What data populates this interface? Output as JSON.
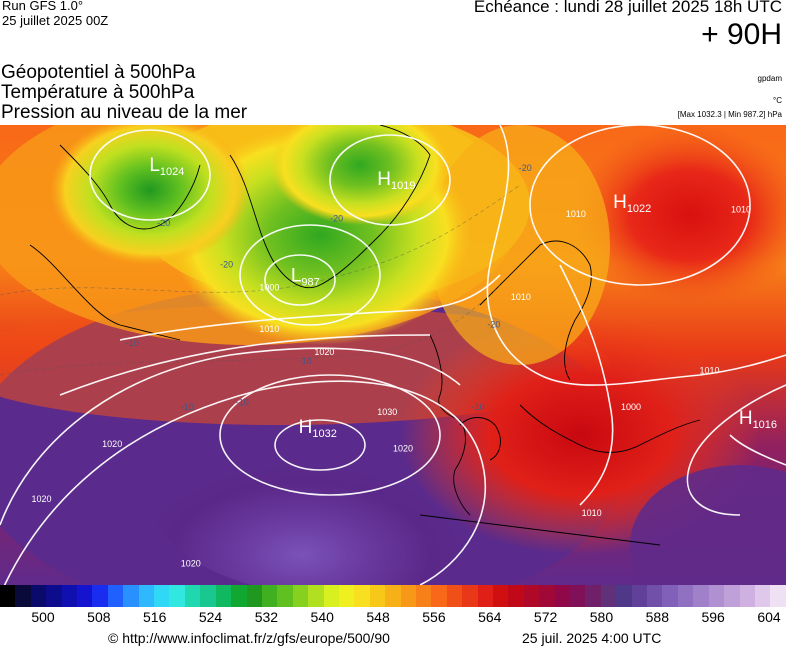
{
  "header": {
    "run_model": "Run GFS 1.0°",
    "run_date": "25 juillet 2025 00Z",
    "echeance": "Echéance : lundi 28 juillet 2025 18h UTC",
    "forecast_hour": "+ 90H"
  },
  "parameters": {
    "line1": "Géopotentiel à 500hPa",
    "line2": "Température à 500hPa",
    "line3": "Pression au niveau de la mer",
    "unit_geopotential": "gpdam",
    "unit_temperature": "°C",
    "max_min": "[Max 1032.3 | Min 987.2] hPa"
  },
  "pressure_centers": [
    {
      "type": "L",
      "value": "1024",
      "mx": 0.19,
      "my": 0.1
    },
    {
      "type": "H",
      "value": "1019",
      "mx": 0.48,
      "my": 0.13
    },
    {
      "type": "L",
      "value": "987",
      "mx": 0.37,
      "my": 0.34
    },
    {
      "type": "H",
      "value": "1022",
      "mx": 0.78,
      "my": 0.18
    },
    {
      "type": "H",
      "value": "1032",
      "mx": 0.38,
      "my": 0.67
    },
    {
      "type": "H",
      "value": "1016",
      "mx": 0.94,
      "my": 0.65
    }
  ],
  "isobar_labels": [
    {
      "text": "1010",
      "mx": 0.33,
      "my": 0.45
    },
    {
      "text": "1020",
      "mx": 0.4,
      "my": 0.5
    },
    {
      "text": "1030",
      "mx": 0.48,
      "my": 0.63
    },
    {
      "text": "1020",
      "mx": 0.5,
      "my": 0.71
    },
    {
      "text": "1020",
      "mx": 0.13,
      "my": 0.7
    },
    {
      "text": "1020",
      "mx": 0.04,
      "my": 0.82
    },
    {
      "text": "1020",
      "mx": 0.23,
      "my": 0.96
    },
    {
      "text": "1010",
      "mx": 0.72,
      "my": 0.2
    },
    {
      "text": "1010",
      "mx": 0.93,
      "my": 0.19
    },
    {
      "text": "1010",
      "mx": 0.89,
      "my": 0.54
    },
    {
      "text": "1010",
      "mx": 0.74,
      "my": 0.85
    },
    {
      "text": "1000",
      "mx": 0.79,
      "my": 0.62
    },
    {
      "text": "1000",
      "mx": 0.33,
      "my": 0.36
    },
    {
      "text": "1010",
      "mx": 0.65,
      "my": 0.38
    }
  ],
  "temperature_labels": [
    {
      "text": "-20",
      "mx": 0.2,
      "my": 0.22
    },
    {
      "text": "-20",
      "mx": 0.28,
      "my": 0.31
    },
    {
      "text": "-20",
      "mx": 0.42,
      "my": 0.21
    },
    {
      "text": "-20",
      "mx": 0.66,
      "my": 0.1
    },
    {
      "text": "-20",
      "mx": 0.62,
      "my": 0.44
    },
    {
      "text": "-10",
      "mx": 0.38,
      "my": 0.52
    },
    {
      "text": "-10",
      "mx": 0.23,
      "my": 0.62
    },
    {
      "text": "-10",
      "mx": 0.3,
      "my": 0.61
    },
    {
      "text": "-10",
      "mx": 0.6,
      "my": 0.62
    },
    {
      "text": "-10",
      "mx": 0.16,
      "my": 0.48
    }
  ],
  "scale": {
    "colors": [
      "#000000",
      "#0a0a3a",
      "#0a0a6a",
      "#0c0c8c",
      "#1010b0",
      "#1414d0",
      "#1a2cf0",
      "#2060ff",
      "#2890ff",
      "#30b8ff",
      "#30d8f8",
      "#30e8e0",
      "#20d8b0",
      "#18c890",
      "#10b860",
      "#10a830",
      "#209820",
      "#40b020",
      "#60c020",
      "#88d020",
      "#b0e020",
      "#d8f020",
      "#f0f020",
      "#f8e020",
      "#f8c818",
      "#f8b018",
      "#f89818",
      "#f88018",
      "#f86818",
      "#f05018",
      "#e83818",
      "#e02018",
      "#d01010",
      "#c00818",
      "#b00828",
      "#a00838",
      "#900848",
      "#801058",
      "#702068",
      "#603078",
      "#503888",
      "#604098",
      "#7050a8",
      "#8060b8",
      "#9070c0",
      "#a080c8",
      "#b090d0",
      "#c0a0d8",
      "#d0b0e0",
      "#e0c8ec",
      "#f0e0f4"
    ],
    "labels": [
      "500",
      "508",
      "516",
      "524",
      "532",
      "540",
      "548",
      "556",
      "564",
      "572",
      "580",
      "588",
      "596",
      "604"
    ]
  },
  "footer": {
    "credit": "© http://www.infoclimat.fr/z/gfs/europe/500/90",
    "valid_time": "25 juil. 2025  4:00 UTC"
  }
}
